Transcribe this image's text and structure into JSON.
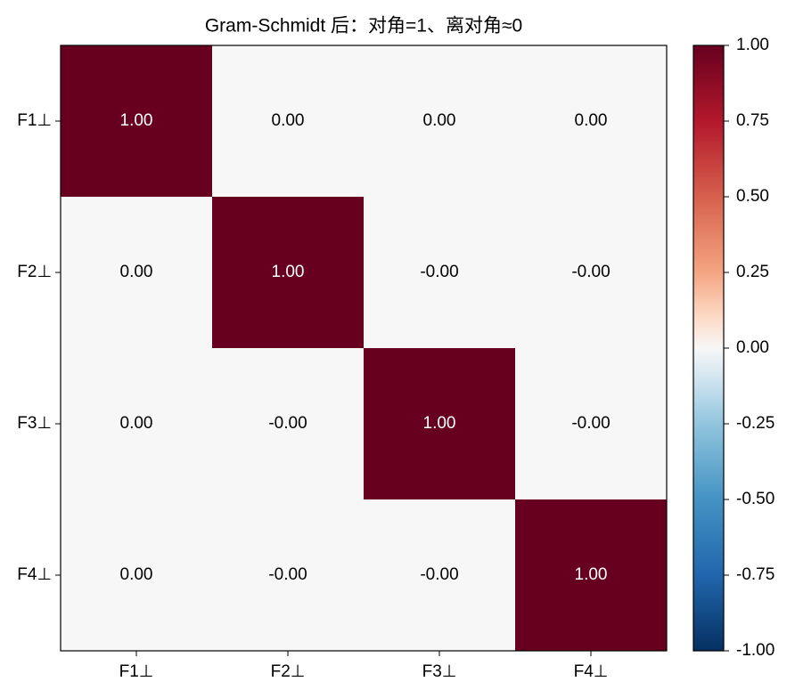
{
  "chart_data": {
    "type": "heatmap",
    "title": "Gram-Schmidt 后：对角=1、离对角≈0",
    "x_categories": [
      "F1⊥",
      "F2⊥",
      "F3⊥",
      "F4⊥"
    ],
    "y_categories": [
      "F1⊥",
      "F2⊥",
      "F3⊥",
      "F4⊥"
    ],
    "values": [
      [
        1,
        0,
        0,
        0
      ],
      [
        0,
        1,
        0,
        0
      ],
      [
        0,
        0,
        1,
        0
      ],
      [
        0,
        0,
        0,
        1
      ]
    ],
    "value_labels": [
      [
        "1.00",
        "0.00",
        "0.00",
        "0.00"
      ],
      [
        "0.00",
        "1.00",
        "-0.00",
        "-0.00"
      ],
      [
        "0.00",
        "-0.00",
        "1.00",
        "-0.00"
      ],
      [
        "0.00",
        "-0.00",
        "-0.00",
        "1.00"
      ]
    ],
    "colormap": "RdBu_r",
    "clim": [
      -1,
      1
    ],
    "cticks": [
      {
        "value": -1,
        "label": "-1.00"
      },
      {
        "value": -0.75,
        "label": "-0.75"
      },
      {
        "value": -0.5,
        "label": "-0.50"
      },
      {
        "value": -0.25,
        "label": "-0.25"
      },
      {
        "value": 0,
        "label": "0.00"
      },
      {
        "value": 0.25,
        "label": "0.25"
      },
      {
        "value": 0.5,
        "label": "0.50"
      },
      {
        "value": 0.75,
        "label": "0.75"
      },
      {
        "value": 1,
        "label": "1.00"
      }
    ]
  }
}
